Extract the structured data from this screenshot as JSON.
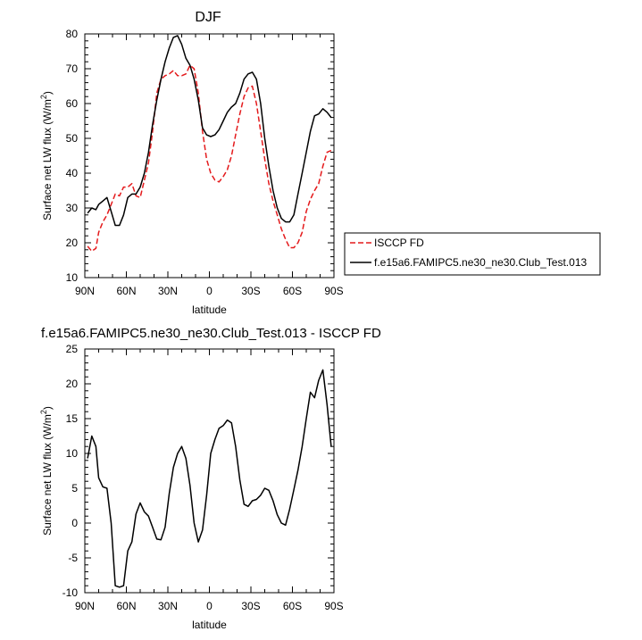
{
  "chart_data": [
    {
      "type": "line",
      "title": "DJF",
      "xlabel": "latitude",
      "ylabel": "Surface net LW flux (W/m",
      "ylabel_sup": "2",
      "ylabel_close": ")",
      "xlim": [
        90,
        -90
      ],
      "ylim": [
        10,
        80
      ],
      "xticks": [
        90,
        60,
        30,
        0,
        -30,
        -60,
        -90
      ],
      "xtick_labels": [
        "90N",
        "60N",
        "30N",
        "0",
        "30S",
        "60S",
        "90S"
      ],
      "yticks": [
        10,
        20,
        30,
        40,
        50,
        60,
        70,
        80
      ],
      "ytick_labels": [
        "10",
        "20",
        "30",
        "40",
        "50",
        "60",
        "70",
        "80"
      ],
      "legend_position": "outside-right",
      "series": [
        {
          "name": "ISCCP FD",
          "color": "#e41a1c",
          "style": "dashed",
          "x": [
            88,
            85,
            82,
            80,
            77,
            74,
            71,
            68,
            65,
            62,
            59,
            56,
            53,
            50,
            47,
            44,
            41,
            38,
            35,
            32,
            29,
            26,
            23,
            20,
            17,
            14,
            11,
            8,
            5,
            2,
            -1,
            -4,
            -7,
            -10,
            -13,
            -16,
            -19,
            -22,
            -25,
            -28,
            -31,
            -34,
            -37,
            -40,
            -43,
            -46,
            -49,
            -52,
            -55,
            -58,
            -61,
            -64,
            -67,
            -70,
            -73,
            -76,
            -79,
            -82,
            -85,
            -88
          ],
          "y": [
            19,
            17.6,
            18.4,
            23,
            26,
            28,
            31,
            34,
            33.5,
            36,
            36,
            37,
            33.5,
            33,
            38,
            43,
            52,
            63,
            67,
            68,
            68.5,
            69.5,
            68,
            68,
            68.5,
            71,
            70,
            63,
            52,
            44,
            40,
            38,
            37.5,
            39,
            41,
            45,
            51,
            57,
            62,
            64.5,
            65,
            60,
            52,
            44,
            37,
            32,
            28,
            24,
            21,
            18.6,
            18.6,
            20,
            23,
            29,
            32.5,
            35,
            37,
            42,
            46,
            46.5
          ]
        },
        {
          "name": "f.e15a6.FAMIPC5.ne30_ne30.Club_Test.013",
          "color": "#000000",
          "style": "solid",
          "x": [
            88,
            85,
            82,
            80,
            77,
            74,
            71,
            68,
            65,
            62,
            59,
            56,
            53,
            50,
            47,
            44,
            41,
            38,
            35,
            32,
            29,
            26,
            23,
            20,
            17,
            14,
            11,
            8,
            5,
            2,
            -1,
            -4,
            -7,
            -10,
            -13,
            -16,
            -19,
            -22,
            -25,
            -28,
            -31,
            -34,
            -37,
            -40,
            -43,
            -46,
            -49,
            -52,
            -55,
            -58,
            -61,
            -64,
            -67,
            -70,
            -73,
            -76,
            -79,
            -82,
            -85,
            -88
          ],
          "y": [
            28.5,
            30,
            29.5,
            31,
            32,
            33,
            29,
            25,
            25,
            28,
            33,
            34,
            34,
            36,
            40,
            46,
            54,
            61,
            67,
            72,
            76,
            79,
            79.5,
            77,
            73,
            71,
            67,
            61,
            53,
            51,
            50.5,
            51,
            52.5,
            55,
            57.5,
            59,
            60,
            63,
            67,
            68.5,
            69,
            67,
            60,
            50,
            42,
            35,
            30,
            27,
            26,
            26,
            28,
            34,
            40,
            46,
            52,
            56.5,
            57,
            58.5,
            57.5,
            56
          ]
        }
      ]
    },
    {
      "type": "line",
      "title": "f.e15a6.FAMIPC5.ne30_ne30.Club_Test.013 - ISCCP FD",
      "xlabel": "latitude",
      "ylabel": "Surface net LW flux (W/m",
      "ylabel_sup": "2",
      "ylabel_close": ")",
      "xlim": [
        90,
        -90
      ],
      "ylim": [
        -10,
        25
      ],
      "xticks": [
        90,
        60,
        30,
        0,
        -30,
        -60,
        -90
      ],
      "xtick_labels": [
        "90N",
        "60N",
        "30N",
        "0",
        "30S",
        "60S",
        "90S"
      ],
      "yticks": [
        -10,
        -5,
        0,
        5,
        10,
        15,
        20,
        25
      ],
      "ytick_labels": [
        "-10",
        "-5",
        "0",
        "5",
        "10",
        "15",
        "20",
        "25"
      ],
      "series": [
        {
          "color": "#000000",
          "style": "solid",
          "x": [
            88,
            85,
            82,
            80,
            77,
            74,
            71,
            68,
            65,
            62,
            59,
            56,
            53,
            50,
            47,
            44,
            41,
            38,
            35,
            32,
            29,
            26,
            23,
            20,
            17,
            14,
            11,
            8,
            5,
            2,
            -1,
            -4,
            -7,
            -10,
            -13,
            -16,
            -19,
            -22,
            -25,
            -28,
            -31,
            -34,
            -37,
            -40,
            -43,
            -46,
            -49,
            -52,
            -55,
            -58,
            -61,
            -64,
            -67,
            -70,
            -73,
            -76,
            -79,
            -82,
            -85,
            -88
          ],
          "y": [
            9.3,
            12.5,
            11,
            6.5,
            5.2,
            5,
            0,
            -9,
            -9.2,
            -9,
            -4,
            -2.7,
            1.3,
            2.9,
            1.6,
            1.0,
            -0.6,
            -2.3,
            -2.4,
            -0.6,
            4.3,
            8,
            10,
            11,
            9.3,
            5.4,
            0,
            -2.7,
            -1,
            4,
            10,
            12,
            13.6,
            14,
            14.8,
            14.4,
            11,
            6.2,
            2.7,
            2.4,
            3.2,
            3.4,
            4.0,
            5,
            4.7,
            3.2,
            1.2,
            0,
            -0.3,
            2,
            4.8,
            7.6,
            11,
            15,
            18.8,
            18,
            20.5,
            22,
            17,
            11
          ]
        }
      ]
    }
  ]
}
